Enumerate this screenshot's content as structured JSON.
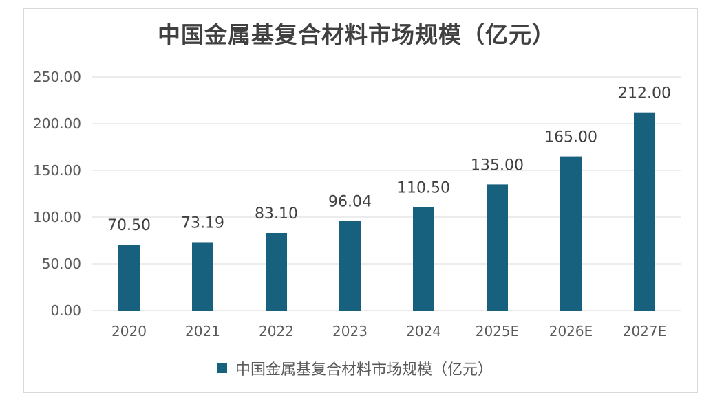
{
  "chart_data": {
    "type": "bar",
    "title": "中国金属基复合材料市场规模（亿元）",
    "categories": [
      "2020",
      "2021",
      "2022",
      "2023",
      "2024",
      "2025E",
      "2026E",
      "2027E"
    ],
    "series": [
      {
        "name": "中国金属基复合材料市场规模（亿元）",
        "values": [
          70.5,
          73.19,
          83.1,
          96.04,
          110.5,
          135.0,
          165.0,
          212.0
        ]
      }
    ],
    "data_labels": [
      "70.50",
      "73.19",
      "83.10",
      "96.04",
      "110.50",
      "135.00",
      "165.00",
      "212.00"
    ],
    "yticks": [
      "0.00",
      "50.00",
      "100.00",
      "150.00",
      "200.00",
      "250.00"
    ],
    "ylim": [
      0,
      250
    ],
    "grid": true,
    "legend": "bottom",
    "bar_color": "#17617f",
    "grid_color": "#d9d9d9"
  }
}
